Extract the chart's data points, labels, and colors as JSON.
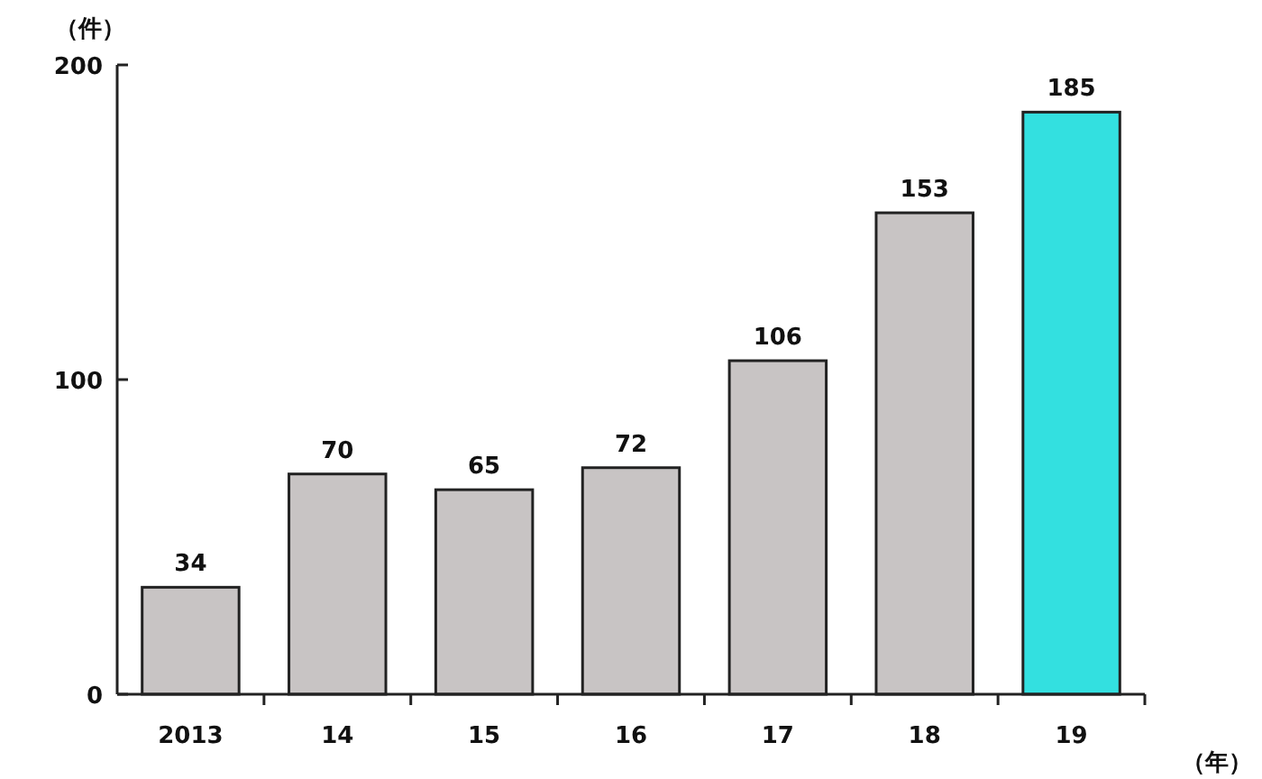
{
  "chart_data": {
    "type": "bar",
    "ylabel": "（件）",
    "xlabel": "（年）",
    "categories": [
      "2013",
      "14",
      "15",
      "16",
      "17",
      "18",
      "19"
    ],
    "values": [
      34,
      70,
      65,
      72,
      106,
      153,
      185
    ],
    "colors": [
      "#c8c4c4",
      "#c8c4c4",
      "#c8c4c4",
      "#c8c4c4",
      "#c8c4c4",
      "#c8c4c4",
      "#33e0e0"
    ],
    "ylim": [
      0,
      200
    ],
    "yticks": [
      0,
      100,
      200
    ],
    "data_labels": true,
    "grid": false
  }
}
